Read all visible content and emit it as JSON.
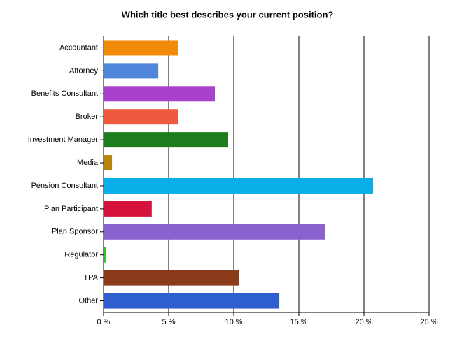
{
  "chart_data": {
    "type": "bar",
    "orientation": "horizontal",
    "title": "Which title best describes your current position?",
    "categories": [
      "Accountant",
      "Attorney",
      "Benefits Consultant",
      "Broker",
      "Investment Manager",
      "Media",
      "Pension Consultant",
      "Plan Participant",
      "Plan Sponsor",
      "Regulator",
      "TPA",
      "Other"
    ],
    "values": [
      5.7,
      4.2,
      8.55,
      5.7,
      9.57,
      0.65,
      20.7,
      3.7,
      17.0,
      0.2,
      10.4,
      13.5
    ],
    "colors": [
      "#f28a0a",
      "#4f86d9",
      "#a842cc",
      "#ee5a3e",
      "#1d7d1d",
      "#b8860b",
      "#0aaee8",
      "#d4123a",
      "#8a62d0",
      "#30c030",
      "#8b3a1a",
      "#2e5ed0"
    ],
    "xlim": [
      0,
      25
    ],
    "xticks": [
      {
        "value": 0,
        "label": "0 %"
      },
      {
        "value": 5,
        "label": "5 %"
      },
      {
        "value": 10,
        "label": "10 %"
      },
      {
        "value": 15,
        "label": "15 %"
      },
      {
        "value": 20,
        "label": "20 %"
      },
      {
        "value": 25,
        "label": "25 %"
      }
    ],
    "grid": true
  }
}
